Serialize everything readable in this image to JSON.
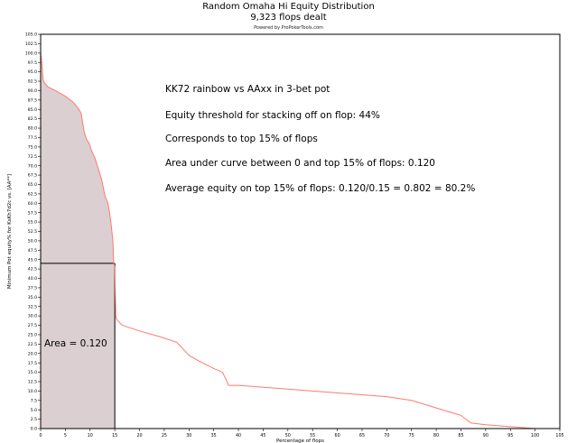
{
  "chart_data": {
    "type": "area",
    "title": "Random Omaha Hi Equity Distribution",
    "subtitle": "9,323 flops dealt",
    "credit": "Powered by ProPokerTools.com",
    "xlabel": "Percentage of flops",
    "ylabel": "Minimum Pot equity% for KsKh7d2c vs. [AA**]",
    "xlim": [
      0,
      105
    ],
    "ylim": [
      0,
      105
    ],
    "xticks": [
      0,
      5,
      10,
      15,
      20,
      25,
      30,
      35,
      40,
      45,
      50,
      55,
      60,
      65,
      70,
      75,
      80,
      85,
      90,
      95,
      100,
      105
    ],
    "yticks": [
      0,
      2.5,
      5,
      7.5,
      10,
      12.5,
      15,
      17.5,
      20,
      22.5,
      25,
      27.5,
      30,
      32.5,
      35,
      37.5,
      40,
      42.5,
      45,
      47.5,
      50,
      52.5,
      55,
      57.5,
      60,
      62.5,
      65,
      67.5,
      70,
      72.5,
      75,
      77.5,
      80,
      82.5,
      85,
      87.5,
      90,
      92.5,
      95,
      97.5,
      100,
      102.5,
      105
    ],
    "curve_color": "#ff7a6e",
    "fill_color": "#dccfd1",
    "series": [
      {
        "x": [
          0,
          0.2,
          0.5,
          0.8,
          1.5,
          3,
          5,
          6.5,
          7.5,
          8.2,
          8.8,
          9.3,
          9.8,
          10.3,
          11,
          11.7,
          12.4,
          13,
          13.6,
          14,
          14.3,
          14.6,
          14.8,
          15,
          15.1,
          15.2,
          15.4,
          16.5,
          20,
          24,
          27.5,
          30,
          32,
          35,
          36.8,
          37.5,
          38,
          40,
          50,
          60,
          70,
          75,
          80,
          85,
          87,
          90,
          95,
          100
        ],
        "y": [
          100,
          98,
          93,
          92,
          91,
          90,
          88.5,
          87,
          85.5,
          84,
          79,
          77,
          76,
          74,
          72,
          69,
          66,
          62,
          60,
          57,
          54,
          50,
          44,
          43,
          36,
          30,
          29,
          27.5,
          26,
          24.5,
          23,
          19.5,
          18,
          16,
          15,
          13,
          11.5,
          11.5,
          10.5,
          9.5,
          8.5,
          7.5,
          5.5,
          3.5,
          1.5,
          1,
          0.5,
          0
        ]
      }
    ],
    "marker": {
      "x": 15,
      "y": 44
    },
    "area_label": "Area = 0.120",
    "annotations": [
      "KK72 rainbow vs AAxx in 3-bet pot",
      "Equity threshold for stacking off on flop: 44%",
      "Corresponds to top 15% of flops",
      "Area under curve between 0 and top 15% of flops: 0.120",
      "Average equity on top 15% of flops: 0.120/0.15 = 0.802 = 80.2%"
    ],
    "grid": false
  }
}
